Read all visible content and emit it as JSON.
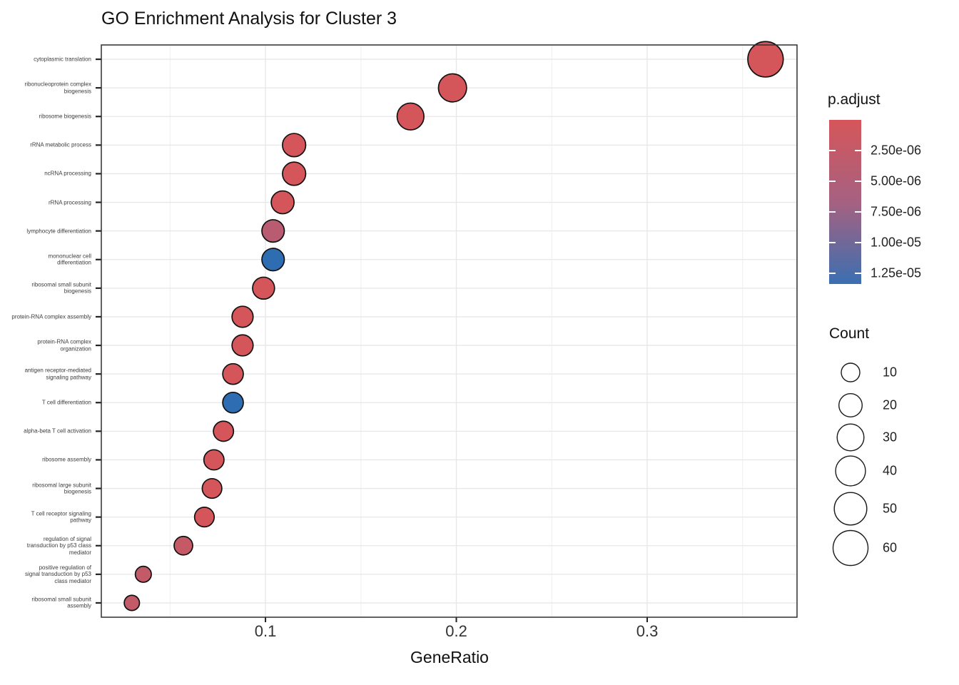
{
  "title": "GO Enrichment Analysis for Cluster 3",
  "chart_data": {
    "type": "scatter",
    "subtype": "enrichment-dotplot",
    "title": "GO Enrichment Analysis for Cluster 3",
    "xlabel": "GeneRatio",
    "ylabel": "",
    "xlim": [
      0.014,
      0.3785
    ],
    "x_major_ticks": [
      0.1,
      0.2,
      0.3
    ],
    "x_major_tick_labels": [
      "0.1",
      "0.2",
      "0.3"
    ],
    "x_minor_ticks": [
      0.05,
      0.15,
      0.25,
      0.35
    ],
    "grid": true,
    "panel_border_color": "#2f2f2f",
    "gridline_color": "#e7e7e7",
    "point_stroke_color": "#111111",
    "points": [
      {
        "term": "cytoplasmic translation",
        "label": "cytoplasmic translation",
        "gene_ratio": 0.362,
        "count": 62,
        "p_adjust": 5e-09,
        "color": "#D5565A"
      },
      {
        "term": "ribonucleoprotein complex biogenesis",
        "label": "ribonucleoprotein complex\nbiogenesis",
        "gene_ratio": 0.198,
        "count": 34,
        "p_adjust": 1e-08,
        "color": "#D5565A"
      },
      {
        "term": "ribosome biogenesis",
        "label": "ribosome biogenesis",
        "gene_ratio": 0.176,
        "count": 30,
        "p_adjust": 1e-08,
        "color": "#D5565A"
      },
      {
        "term": "rRNA metabolic process",
        "label": "rRNA metabolic process",
        "gene_ratio": 0.115,
        "count": 20,
        "p_adjust": 5e-08,
        "color": "#D5565A"
      },
      {
        "term": "ncRNA processing",
        "label": "ncRNA processing",
        "gene_ratio": 0.115,
        "count": 20,
        "p_adjust": 5e-08,
        "color": "#D5565A"
      },
      {
        "term": "rRNA processing",
        "label": "rRNA processing",
        "gene_ratio": 0.109,
        "count": 19,
        "p_adjust": 8e-08,
        "color": "#D5565A"
      },
      {
        "term": "lymphocyte differentiation",
        "label": "lymphocyte differentiation",
        "gene_ratio": 0.104,
        "count": 18,
        "p_adjust": 4e-06,
        "color": "#B95C71"
      },
      {
        "term": "mononuclear cell differentiation",
        "label": "mononuclear cell\ndifferentiation",
        "gene_ratio": 0.104,
        "count": 18,
        "p_adjust": 1.3e-05,
        "color": "#2F6DB2"
      },
      {
        "term": "ribosomal small subunit biogenesis",
        "label": "ribosomal small subunit\nbiogenesis",
        "gene_ratio": 0.099,
        "count": 17,
        "p_adjust": 2e-07,
        "color": "#D5565A"
      },
      {
        "term": "protein-RNA complex assembly",
        "label": "protein-RNA complex assembly",
        "gene_ratio": 0.088,
        "count": 15,
        "p_adjust": 3e-07,
        "color": "#D5565A"
      },
      {
        "term": "protein-RNA complex organization",
        "label": "protein-RNA complex\norganization",
        "gene_ratio": 0.088,
        "count": 15,
        "p_adjust": 3e-07,
        "color": "#D5565A"
      },
      {
        "term": "antigen receptor-mediated signaling pathway",
        "label": "antigen receptor-mediated\nsignaling pathway",
        "gene_ratio": 0.083,
        "count": 14,
        "p_adjust": 4e-07,
        "color": "#D5565A"
      },
      {
        "term": "T cell differentiation",
        "label": "T cell differentiation",
        "gene_ratio": 0.083,
        "count": 14,
        "p_adjust": 1.3e-05,
        "color": "#2F6DB2"
      },
      {
        "term": "alpha-beta T cell activation",
        "label": "alpha-beta T cell activation",
        "gene_ratio": 0.078,
        "count": 13,
        "p_adjust": 5e-07,
        "color": "#D5565A"
      },
      {
        "term": "ribosome assembly",
        "label": "ribosome assembly",
        "gene_ratio": 0.073,
        "count": 13,
        "p_adjust": 4e-07,
        "color": "#D5565A"
      },
      {
        "term": "ribosomal large subunit biogenesis",
        "label": "ribosomal large subunit\nbiogenesis",
        "gene_ratio": 0.072,
        "count": 12,
        "p_adjust": 5e-07,
        "color": "#D5565A"
      },
      {
        "term": "T cell receptor signaling pathway",
        "label": "T cell receptor signaling\npathway",
        "gene_ratio": 0.068,
        "count": 12,
        "p_adjust": 6e-07,
        "color": "#D5565A"
      },
      {
        "term": "regulation of signal transduction by p53 class mediator",
        "label": "regulation of signal\ntransduction by p53 class\nmediator",
        "gene_ratio": 0.057,
        "count": 10,
        "p_adjust": 2e-06,
        "color": "#C65966"
      },
      {
        "term": "positive regulation of signal transduction by p53 class mediator",
        "label": "positive regulation of\nsignal transduction by p53\nclass mediator",
        "gene_ratio": 0.036,
        "count": 6,
        "p_adjust": 2.4e-06,
        "color": "#C35A67"
      },
      {
        "term": "ribosomal small subunit assembly",
        "label": "ribosomal small subunit\nassembly",
        "gene_ratio": 0.03,
        "count": 5,
        "p_adjust": 2.4e-06,
        "color": "#C35A67"
      }
    ],
    "color_legend": {
      "title": "p.adjust",
      "tick_labels": [
        "2.50e-06",
        "5.00e-06",
        "7.50e-06",
        "1.00e-05",
        "1.25e-05"
      ],
      "tick_values": [
        2.5e-06,
        5e-06,
        7.5e-06,
        1e-05,
        1.25e-05
      ],
      "domain": [
        0,
        1.336e-05
      ],
      "gradient_top_color": "#D5565A",
      "gradient_mid_color": "#A66181",
      "gradient_bottom_color": "#3B6FB0",
      "position": "right"
    },
    "size_legend": {
      "title": "Count",
      "values": [
        10,
        20,
        30,
        40,
        50,
        60
      ],
      "labels": [
        "10",
        "20",
        "30",
        "40",
        "50",
        "60"
      ],
      "position": "right"
    }
  }
}
